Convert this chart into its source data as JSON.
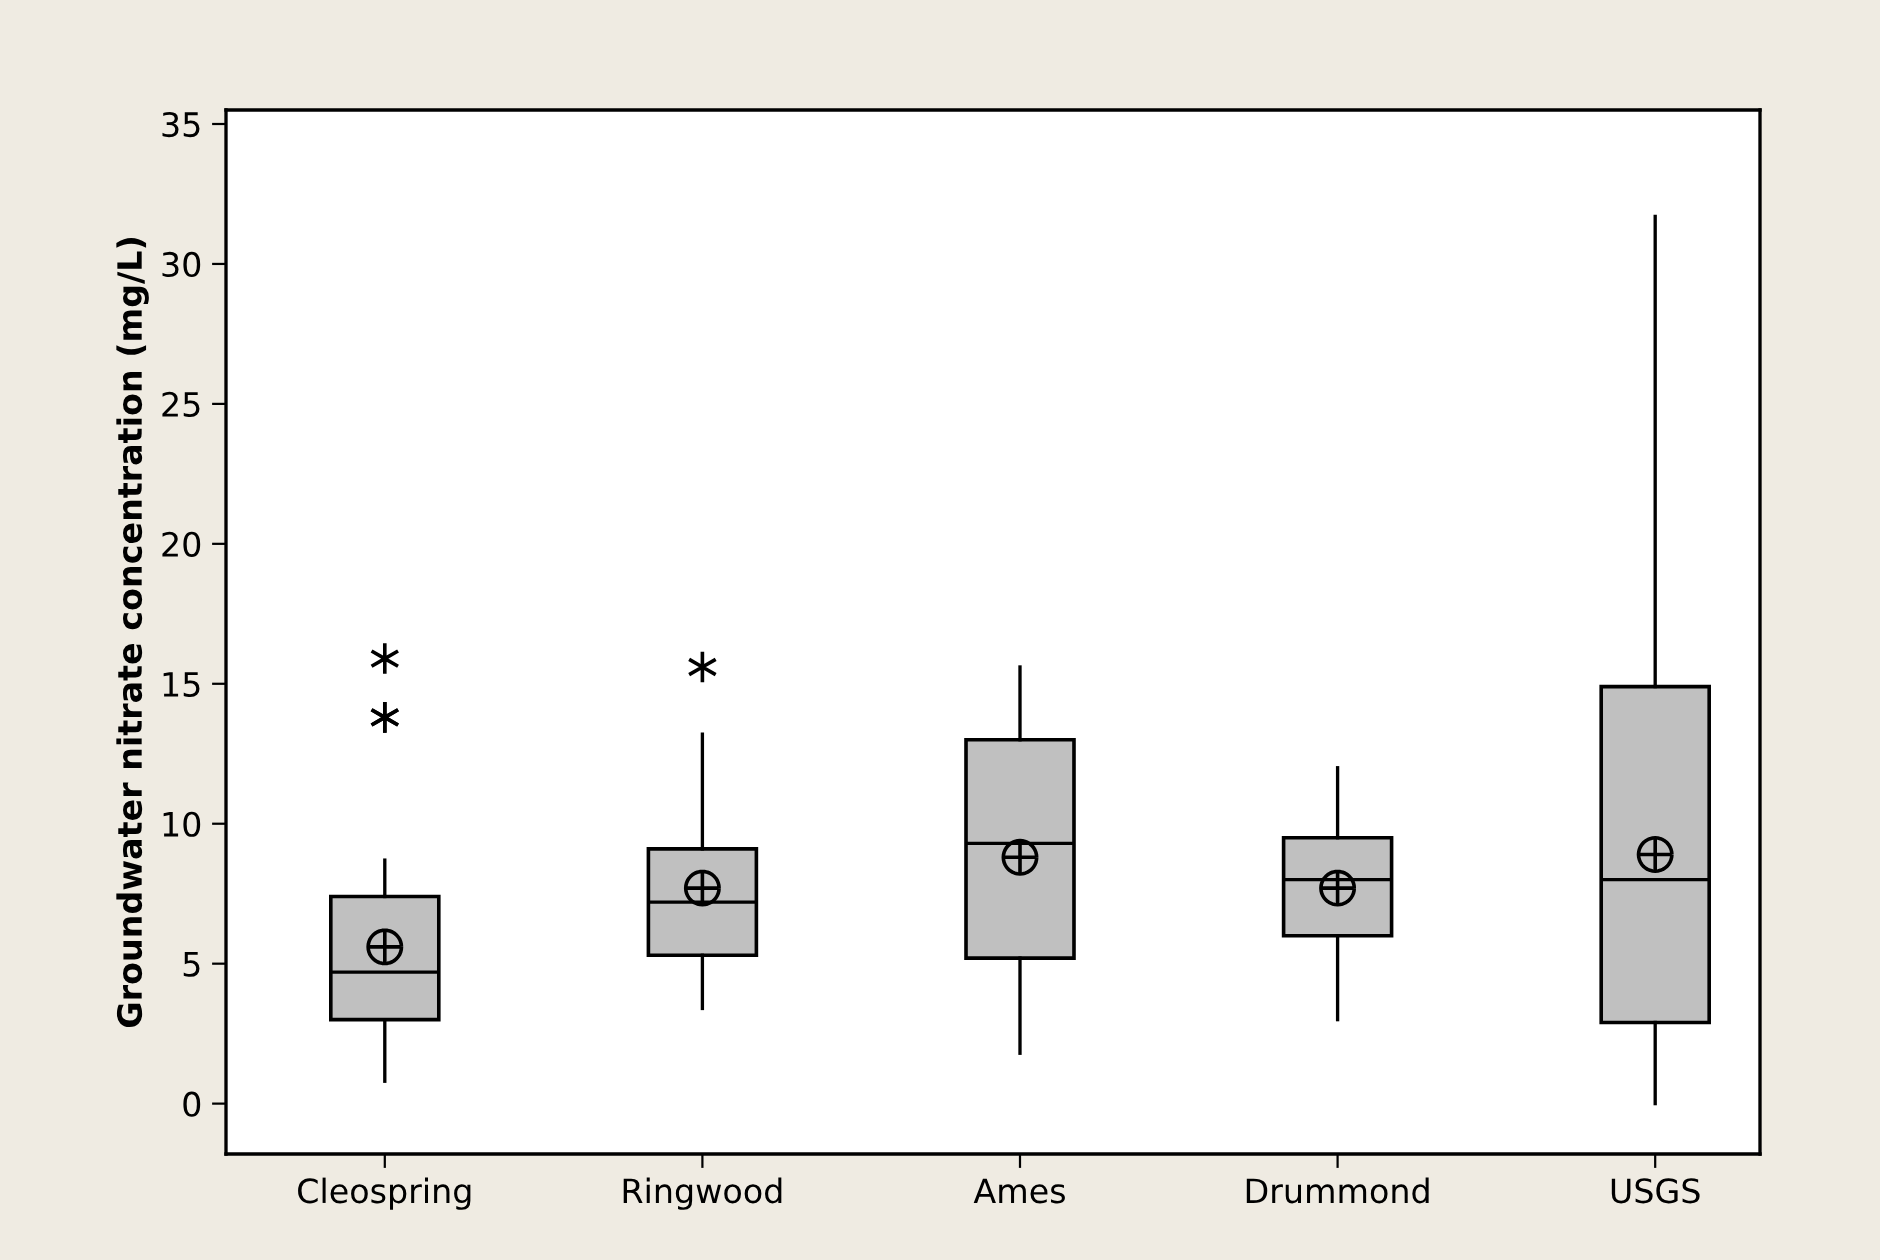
{
  "chart_data": {
    "type": "box",
    "ylabel": "Groundwater nitrate concentration (mg/L)",
    "categories": [
      "Cleospring",
      "Ringwood",
      "Ames",
      "Drummond",
      "USGS"
    ],
    "color": "#c0c0c0",
    "boxes": [
      {
        "low": 0.8,
        "q1": 3.0,
        "median": 4.7,
        "q3": 7.4,
        "high": 8.7,
        "mean": 5.6,
        "outliers": [
          15.9,
          13.8,
          13.8
        ]
      },
      {
        "low": 3.4,
        "q1": 5.3,
        "median": 7.2,
        "q3": 9.1,
        "high": 13.2,
        "mean": 7.7,
        "outliers": [
          15.6
        ]
      },
      {
        "low": 1.8,
        "q1": 5.2,
        "median": 9.3,
        "q3": 13.0,
        "high": 15.6,
        "mean": 8.8
      },
      {
        "low": 3.0,
        "q1": 6.0,
        "median": 8.0,
        "q3": 9.5,
        "high": 12.0,
        "mean": 7.7
      },
      {
        "low": 0.0,
        "q1": 2.9,
        "median": 8.0,
        "q3": 14.9,
        "high": 31.7,
        "mean": 8.9
      }
    ],
    "ylim": [
      -1.8,
      35.5
    ],
    "yticks": [
      0,
      5,
      10,
      15,
      20,
      25,
      30,
      35
    ],
    "grid": false
  }
}
